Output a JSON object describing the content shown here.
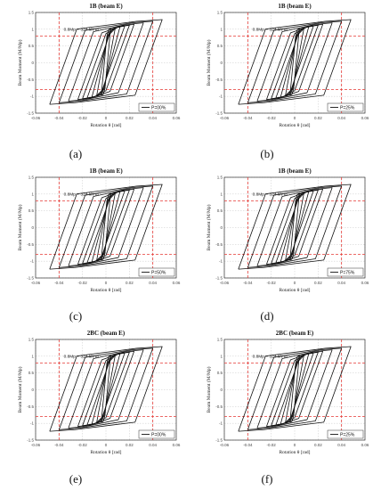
{
  "chart_data": [
    {
      "type": "line",
      "title": "1B (beam E)",
      "caption": "(a)",
      "xlabel": "Rotation θ [rad]",
      "ylabel": "Beam Moment (M/Mp)",
      "xlim": [
        -0.06,
        0.06
      ],
      "ylim": [
        -1.5,
        1.5
      ],
      "xticks": [
        -0.06,
        -0.04,
        -0.02,
        0,
        0.02,
        0.04,
        0.06
      ],
      "yticks": [
        -1.5,
        -1,
        -0.5,
        0,
        0.5,
        1,
        1.5
      ],
      "xtick_labels": [
        "-0.06",
        "-0.04",
        "-0.02",
        "0",
        "0.02",
        "0.04",
        "0.06"
      ],
      "ytick_labels": [
        "-1.5",
        "-1",
        "-0.5",
        "0",
        "0.5",
        "1",
        "1.5"
      ],
      "annotation": "0.8Mp = 324 kN m",
      "reference_lines": {
        "x": [
          -0.04,
          0.04
        ],
        "y": [
          0.8,
          -0.8
        ]
      },
      "legend": "P=00%",
      "legend_position": "bottom-right",
      "series": [
        {
          "amplitudes": [
            0.004,
            0.008,
            0.012,
            0.016,
            0.02,
            0.024,
            0.032,
            0.04,
            0.048
          ],
          "peak_moment": [
            1.5,
            -1.45
          ]
        }
      ]
    },
    {
      "type": "line",
      "title": "1B (beam E)",
      "caption": "(b)",
      "xlabel": "Rotation θ [rad]",
      "ylabel": "Beam Moment (M/Mp)",
      "xlim": [
        -0.06,
        0.06
      ],
      "ylim": [
        -1.5,
        1.5
      ],
      "xticks": [
        -0.06,
        -0.04,
        -0.02,
        0,
        0.02,
        0.04,
        0.06
      ],
      "yticks": [
        -1.5,
        -1,
        -0.5,
        0,
        0.5,
        1,
        1.5
      ],
      "xtick_labels": [
        "-0.06",
        "-0.04",
        "-0.02",
        "0",
        "0.02",
        "0.04",
        "0.06"
      ],
      "ytick_labels": [
        "-1.5",
        "-1",
        "-0.5",
        "0",
        "0.5",
        "1",
        "1.5"
      ],
      "annotation": "0.8Mp = 324 kN m",
      "reference_lines": {
        "x": [
          -0.04,
          0.04
        ],
        "y": [
          0.8,
          -0.8
        ]
      },
      "legend": "P=25%",
      "legend_position": "bottom-right",
      "series": [
        {
          "amplitudes": [
            0.004,
            0.008,
            0.012,
            0.016,
            0.02,
            0.024,
            0.032,
            0.04,
            0.048
          ],
          "peak_moment": [
            1.5,
            -1.45
          ]
        }
      ]
    },
    {
      "type": "line",
      "title": "1B (beam E)",
      "caption": "(c)",
      "xlabel": "Rotation θ [rad]",
      "ylabel": "Beam Moment (M/Mp)",
      "xlim": [
        -0.06,
        0.06
      ],
      "ylim": [
        -1.5,
        1.5
      ],
      "xticks": [
        -0.06,
        -0.04,
        -0.02,
        0,
        0.02,
        0.04,
        0.06
      ],
      "yticks": [
        -1.5,
        -1,
        -0.5,
        0,
        0.5,
        1,
        1.5
      ],
      "xtick_labels": [
        "-0.06",
        "-0.04",
        "-0.02",
        "0",
        "0.02",
        "0.04",
        "0.06"
      ],
      "ytick_labels": [
        "-1.5",
        "-1",
        "-0.5",
        "0",
        "0.5",
        "1",
        "1.5"
      ],
      "annotation": "0.8Mp = 324 kN m",
      "reference_lines": {
        "x": [
          -0.04,
          0.04
        ],
        "y": [
          0.8,
          -0.8
        ]
      },
      "legend": "P=50%",
      "legend_position": "bottom-right",
      "series": [
        {
          "amplitudes": [
            0.004,
            0.008,
            0.012,
            0.016,
            0.02,
            0.024,
            0.032,
            0.04,
            0.048
          ],
          "peak_moment": [
            1.5,
            -1.45
          ]
        }
      ]
    },
    {
      "type": "line",
      "title": "1B (beam E)",
      "caption": "(d)",
      "xlabel": "Rotation θ [rad]",
      "ylabel": "Beam Moment (M/Mp)",
      "xlim": [
        -0.06,
        0.06
      ],
      "ylim": [
        -1.5,
        1.5
      ],
      "xticks": [
        -0.06,
        -0.04,
        -0.02,
        0,
        0.02,
        0.04,
        0.06
      ],
      "yticks": [
        -1.5,
        -1,
        -0.5,
        0,
        0.5,
        1,
        1.5
      ],
      "xtick_labels": [
        "-0.06",
        "-0.04",
        "-0.02",
        "0",
        "0.02",
        "0.04",
        "0.06"
      ],
      "ytick_labels": [
        "-1.5",
        "-1",
        "-0.5",
        "0",
        "0.5",
        "1",
        "1.5"
      ],
      "annotation": "0.8Mp = 324 kN m",
      "reference_lines": {
        "x": [
          -0.04,
          0.04
        ],
        "y": [
          0.8,
          -0.8
        ]
      },
      "legend": "P=75%",
      "legend_position": "bottom-right",
      "series": [
        {
          "amplitudes": [
            0.004,
            0.008,
            0.012,
            0.016,
            0.02,
            0.024,
            0.032,
            0.04,
            0.048
          ],
          "peak_moment": [
            1.5,
            -1.45
          ]
        }
      ]
    },
    {
      "type": "line",
      "title": "2BC (beam E)",
      "caption": "(e)",
      "xlabel": "Rotation θ [rad]",
      "ylabel": "Beam Moment (M/Mp)",
      "xlim": [
        -0.06,
        0.06
      ],
      "ylim": [
        -1.5,
        1.5
      ],
      "xticks": [
        -0.06,
        -0.04,
        -0.02,
        0,
        0.02,
        0.04,
        0.06
      ],
      "yticks": [
        -1.5,
        -1,
        -0.5,
        0,
        0.5,
        1,
        1.5
      ],
      "xtick_labels": [
        "-0.06",
        "-0.04",
        "-0.02",
        "0",
        "0.02",
        "0.04",
        "0.06"
      ],
      "ytick_labels": [
        "-1.5",
        "-1",
        "-0.5",
        "0",
        "0.5",
        "1",
        "1.5"
      ],
      "annotation": "0.8Mp = 324 kN m",
      "reference_lines": {
        "x": [
          -0.04,
          0.04
        ],
        "y": [
          0.8,
          -0.8
        ]
      },
      "legend": "P=00%",
      "legend_position": "bottom-right",
      "series": [
        {
          "amplitudes": [
            0.004,
            0.008,
            0.012,
            0.016,
            0.02,
            0.024,
            0.032,
            0.04,
            0.048
          ],
          "peak_moment": [
            1.5,
            -1.45
          ]
        }
      ]
    },
    {
      "type": "line",
      "title": "2BC (beam E)",
      "caption": "(f)",
      "xlabel": "Rotation θ [rad]",
      "ylabel": "Beam Moment (M/Mp)",
      "xlim": [
        -0.06,
        0.06
      ],
      "ylim": [
        -1.5,
        1.5
      ],
      "xticks": [
        -0.06,
        -0.04,
        -0.02,
        0,
        0.02,
        0.04,
        0.06
      ],
      "yticks": [
        -1.5,
        -1,
        -0.5,
        0,
        0.5,
        1,
        1.5
      ],
      "xtick_labels": [
        "-0.06",
        "-0.04",
        "-0.02",
        "0",
        "0.02",
        "0.04",
        "0.06"
      ],
      "ytick_labels": [
        "-1.5",
        "-1",
        "-0.5",
        "0",
        "0.5",
        "1",
        "1.5"
      ],
      "annotation": "0.8Mp = 324 kN m",
      "reference_lines": {
        "x": [
          -0.04,
          0.04
        ],
        "y": [
          0.8,
          -0.8
        ]
      },
      "legend": "P=25%",
      "legend_position": "bottom-right",
      "series": [
        {
          "amplitudes": [
            0.004,
            0.008,
            0.012,
            0.016,
            0.02,
            0.024,
            0.032,
            0.04,
            0.048
          ],
          "peak_moment": [
            1.5,
            -1.45
          ]
        }
      ]
    }
  ],
  "colors": {
    "curve": "#111111",
    "reference": "#e53935",
    "grid": "#c8c8c8",
    "axis": "#333333"
  }
}
